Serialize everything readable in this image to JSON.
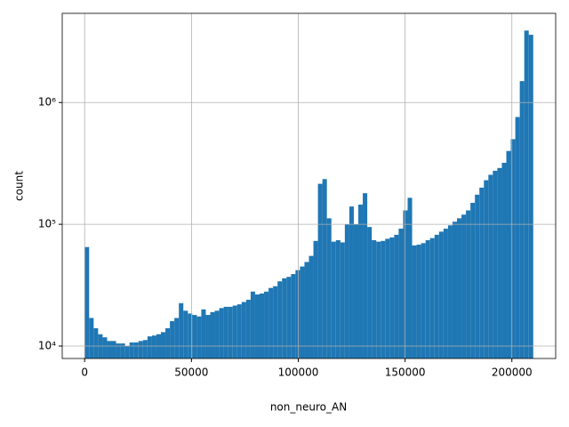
{
  "chart_data": {
    "type": "histogram",
    "xlabel": "non_neuro_AN",
    "ylabel": "count",
    "color": "#1f77b4",
    "log_y": true,
    "grid": true,
    "bins": [
      0,
      2100,
      4200,
      6300,
      8400,
      10500,
      12600,
      14700,
      16800,
      18900,
      21000,
      23100,
      25200,
      27300,
      29400,
      31500,
      33600,
      35700,
      37800,
      39900,
      42000,
      44100,
      46200,
      48300,
      50400,
      52500,
      54600,
      56700,
      58800,
      60900,
      63000,
      65100,
      67200,
      69300,
      71400,
      73500,
      75600,
      77700,
      79800,
      81900,
      84000,
      86100,
      88200,
      90300,
      92400,
      94500,
      96600,
      98700,
      100800,
      102900,
      105000,
      107100,
      109200,
      111300,
      113400,
      115500,
      117600,
      119700,
      121800,
      123900,
      126000,
      128100,
      130200,
      132300,
      134400,
      136500,
      138600,
      140700,
      142800,
      144900,
      147000,
      149100,
      151200,
      153300,
      155400,
      157500,
      159600,
      161700,
      163800,
      165900,
      168000,
      170100,
      172200,
      174300,
      176400,
      178500,
      180600,
      182700,
      184800,
      186900,
      189000,
      191100,
      193200,
      195300,
      197400,
      199500,
      201600,
      203700,
      205800,
      207900,
      210000
    ],
    "counts": [
      65000,
      17000,
      14000,
      12500,
      11800,
      11000,
      11000,
      10500,
      10500,
      10000,
      10700,
      10700,
      11000,
      11200,
      12000,
      12200,
      12500,
      13000,
      14000,
      16000,
      17000,
      22500,
      19500,
      18500,
      18000,
      17500,
      20000,
      18000,
      19000,
      19500,
      20500,
      21000,
      21000,
      21500,
      22000,
      23000,
      24000,
      28000,
      26500,
      27000,
      28000,
      30000,
      31000,
      34000,
      36000,
      37000,
      39000,
      42000,
      45000,
      49000,
      55000,
      73000,
      215000,
      235000,
      112000,
      72000,
      74000,
      71000,
      100000,
      140000,
      100000,
      145000,
      180000,
      95000,
      74000,
      72000,
      73000,
      76000,
      78000,
      82000,
      92000,
      130000,
      165000,
      67000,
      68000,
      70000,
      74000,
      77000,
      82000,
      87000,
      92000,
      98000,
      105000,
      112000,
      120000,
      130000,
      150000,
      175000,
      200000,
      230000,
      255000,
      275000,
      290000,
      320000,
      400000,
      500000,
      760000,
      1500000,
      3900000,
      3600000
    ],
    "xlim": [
      -10500,
      220500
    ],
    "ylim": [
      7900,
      5400000
    ],
    "xticks": [
      0,
      50000,
      100000,
      150000,
      200000
    ],
    "yticks": [
      {
        "value": 10000,
        "label": "10⁴"
      },
      {
        "value": 100000,
        "label": "10⁵"
      },
      {
        "value": 1000000,
        "label": "10⁶"
      }
    ]
  }
}
